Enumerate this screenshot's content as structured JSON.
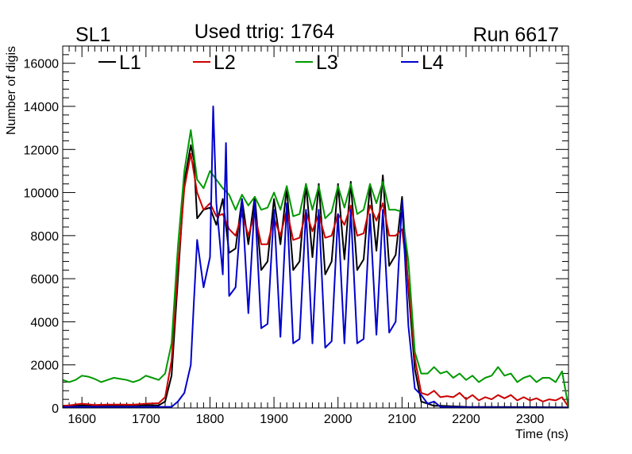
{
  "chart_data": {
    "type": "line",
    "title": "Used ttrig: 1764",
    "top_left_label": "SL1",
    "top_right_label": "Run 6617",
    "xlabel": "Time (ns)",
    "ylabel": "Number of digis",
    "xlim": [
      1570,
      2360
    ],
    "ylim": [
      0,
      16800
    ],
    "xticks": [
      1600,
      1700,
      1800,
      1900,
      2000,
      2100,
      2200,
      2300
    ],
    "yticks": [
      0,
      2000,
      4000,
      6000,
      8000,
      10000,
      12000,
      14000,
      16000
    ],
    "grid": false,
    "legend_position": "top-left, horizontal",
    "series": [
      {
        "name": "L1",
        "color": "#000000",
        "points": [
          [
            1570,
            100
          ],
          [
            1600,
            120
          ],
          [
            1650,
            120
          ],
          [
            1700,
            130
          ],
          [
            1720,
            120
          ],
          [
            1730,
            300
          ],
          [
            1740,
            1500
          ],
          [
            1750,
            6000
          ],
          [
            1760,
            10500
          ],
          [
            1770,
            12200
          ],
          [
            1775,
            11500
          ],
          [
            1780,
            8800
          ],
          [
            1790,
            9200
          ],
          [
            1800,
            9300
          ],
          [
            1810,
            8500
          ],
          [
            1820,
            9700
          ],
          [
            1830,
            7200
          ],
          [
            1840,
            7400
          ],
          [
            1850,
            9700
          ],
          [
            1860,
            7600
          ],
          [
            1870,
            9800
          ],
          [
            1880,
            6400
          ],
          [
            1890,
            6800
          ],
          [
            1900,
            9700
          ],
          [
            1910,
            7600
          ],
          [
            1920,
            10200
          ],
          [
            1930,
            6400
          ],
          [
            1940,
            6800
          ],
          [
            1950,
            10400
          ],
          [
            1960,
            7000
          ],
          [
            1970,
            10400
          ],
          [
            1980,
            6200
          ],
          [
            1990,
            6800
          ],
          [
            2000,
            10400
          ],
          [
            2010,
            6900
          ],
          [
            2020,
            10500
          ],
          [
            2030,
            6400
          ],
          [
            2040,
            6900
          ],
          [
            2050,
            10300
          ],
          [
            2060,
            7300
          ],
          [
            2070,
            10800
          ],
          [
            2080,
            6600
          ],
          [
            2090,
            7100
          ],
          [
            2100,
            9800
          ],
          [
            2110,
            5500
          ],
          [
            2120,
            1800
          ],
          [
            2130,
            300
          ],
          [
            2140,
            200
          ],
          [
            2150,
            100
          ],
          [
            2160,
            100
          ],
          [
            2200,
            50
          ],
          [
            2300,
            40
          ],
          [
            2360,
            30
          ]
        ]
      },
      {
        "name": "L2",
        "color": "#cc0000",
        "points": [
          [
            1570,
            100
          ],
          [
            1580,
            120
          ],
          [
            1600,
            200
          ],
          [
            1620,
            140
          ],
          [
            1640,
            160
          ],
          [
            1660,
            160
          ],
          [
            1680,
            150
          ],
          [
            1700,
            200
          ],
          [
            1720,
            220
          ],
          [
            1730,
            500
          ],
          [
            1740,
            2200
          ],
          [
            1750,
            6500
          ],
          [
            1760,
            10200
          ],
          [
            1770,
            11800
          ],
          [
            1780,
            10000
          ],
          [
            1790,
            9200
          ],
          [
            1800,
            9500
          ],
          [
            1810,
            8900
          ],
          [
            1820,
            9000
          ],
          [
            1830,
            8300
          ],
          [
            1840,
            8000
          ],
          [
            1850,
            9000
          ],
          [
            1860,
            8000
          ],
          [
            1870,
            9000
          ],
          [
            1880,
            7600
          ],
          [
            1890,
            7600
          ],
          [
            1900,
            8800
          ],
          [
            1910,
            8000
          ],
          [
            1920,
            9200
          ],
          [
            1930,
            7800
          ],
          [
            1940,
            7900
          ],
          [
            1950,
            9100
          ],
          [
            1960,
            8200
          ],
          [
            1970,
            9000
          ],
          [
            1980,
            7900
          ],
          [
            1990,
            8000
          ],
          [
            2000,
            9000
          ],
          [
            2010,
            8500
          ],
          [
            2020,
            9400
          ],
          [
            2030,
            8000
          ],
          [
            2040,
            8100
          ],
          [
            2050,
            9400
          ],
          [
            2060,
            8700
          ],
          [
            2070,
            9500
          ],
          [
            2080,
            8000
          ],
          [
            2090,
            8000
          ],
          [
            2100,
            8300
          ],
          [
            2110,
            5800
          ],
          [
            2120,
            2300
          ],
          [
            2130,
            700
          ],
          [
            2140,
            600
          ],
          [
            2150,
            800
          ],
          [
            2160,
            500
          ],
          [
            2170,
            550
          ],
          [
            2180,
            500
          ],
          [
            2190,
            700
          ],
          [
            2200,
            400
          ],
          [
            2210,
            600
          ],
          [
            2220,
            350
          ],
          [
            2230,
            500
          ],
          [
            2240,
            400
          ],
          [
            2250,
            600
          ],
          [
            2260,
            450
          ],
          [
            2270,
            600
          ],
          [
            2280,
            350
          ],
          [
            2290,
            500
          ],
          [
            2300,
            350
          ],
          [
            2310,
            450
          ],
          [
            2320,
            300
          ],
          [
            2330,
            400
          ],
          [
            2340,
            350
          ],
          [
            2350,
            500
          ],
          [
            2360,
            50
          ]
        ]
      },
      {
        "name": "L3",
        "color": "#009900",
        "points": [
          [
            1570,
            1300
          ],
          [
            1580,
            1200
          ],
          [
            1590,
            1300
          ],
          [
            1600,
            1500
          ],
          [
            1610,
            1450
          ],
          [
            1620,
            1350
          ],
          [
            1630,
            1200
          ],
          [
            1640,
            1300
          ],
          [
            1650,
            1400
          ],
          [
            1660,
            1350
          ],
          [
            1670,
            1300
          ],
          [
            1680,
            1200
          ],
          [
            1690,
            1300
          ],
          [
            1700,
            1500
          ],
          [
            1710,
            1400
          ],
          [
            1720,
            1300
          ],
          [
            1730,
            1600
          ],
          [
            1740,
            3000
          ],
          [
            1750,
            7500
          ],
          [
            1760,
            11000
          ],
          [
            1770,
            12900
          ],
          [
            1780,
            10600
          ],
          [
            1790,
            10200
          ],
          [
            1800,
            11000
          ],
          [
            1810,
            10600
          ],
          [
            1820,
            10200
          ],
          [
            1830,
            9900
          ],
          [
            1840,
            9200
          ],
          [
            1850,
            9900
          ],
          [
            1860,
            9400
          ],
          [
            1870,
            9800
          ],
          [
            1880,
            9200
          ],
          [
            1890,
            9300
          ],
          [
            1900,
            10000
          ],
          [
            1910,
            9200
          ],
          [
            1920,
            10300
          ],
          [
            1930,
            8900
          ],
          [
            1940,
            9000
          ],
          [
            1950,
            10400
          ],
          [
            1960,
            9200
          ],
          [
            1970,
            10300
          ],
          [
            1980,
            8800
          ],
          [
            1990,
            9100
          ],
          [
            2000,
            10300
          ],
          [
            2010,
            9300
          ],
          [
            2020,
            10400
          ],
          [
            2030,
            9000
          ],
          [
            2040,
            9200
          ],
          [
            2050,
            10400
          ],
          [
            2060,
            9500
          ],
          [
            2070,
            10500
          ],
          [
            2080,
            9200
          ],
          [
            2090,
            9200
          ],
          [
            2100,
            9100
          ],
          [
            2110,
            6800
          ],
          [
            2120,
            2600
          ],
          [
            2130,
            1600
          ],
          [
            2140,
            1600
          ],
          [
            2150,
            1900
          ],
          [
            2160,
            1600
          ],
          [
            2170,
            1700
          ],
          [
            2180,
            1400
          ],
          [
            2190,
            1600
          ],
          [
            2200,
            1300
          ],
          [
            2210,
            1500
          ],
          [
            2220,
            1200
          ],
          [
            2230,
            1400
          ],
          [
            2240,
            1500
          ],
          [
            2250,
            1900
          ],
          [
            2260,
            1500
          ],
          [
            2270,
            1600
          ],
          [
            2280,
            1200
          ],
          [
            2290,
            1400
          ],
          [
            2300,
            1500
          ],
          [
            2310,
            1200
          ],
          [
            2320,
            1400
          ],
          [
            2330,
            1400
          ],
          [
            2340,
            1200
          ],
          [
            2350,
            1700
          ],
          [
            2360,
            50
          ]
        ]
      },
      {
        "name": "L4",
        "color": "#0000cc",
        "points": [
          [
            1570,
            50
          ],
          [
            1600,
            50
          ],
          [
            1700,
            50
          ],
          [
            1740,
            50
          ],
          [
            1750,
            300
          ],
          [
            1760,
            700
          ],
          [
            1770,
            2000
          ],
          [
            1775,
            5000
          ],
          [
            1780,
            7800
          ],
          [
            1790,
            5600
          ],
          [
            1800,
            7000
          ],
          [
            1805,
            14000
          ],
          [
            1810,
            9500
          ],
          [
            1820,
            6200
          ],
          [
            1825,
            12300
          ],
          [
            1830,
            5200
          ],
          [
            1840,
            5600
          ],
          [
            1850,
            9700
          ],
          [
            1860,
            4400
          ],
          [
            1870,
            9600
          ],
          [
            1880,
            3700
          ],
          [
            1890,
            3900
          ],
          [
            1900,
            9200
          ],
          [
            1910,
            3300
          ],
          [
            1920,
            9500
          ],
          [
            1930,
            3000
          ],
          [
            1940,
            3200
          ],
          [
            1950,
            9200
          ],
          [
            1960,
            3000
          ],
          [
            1970,
            9200
          ],
          [
            1980,
            2800
          ],
          [
            1990,
            3100
          ],
          [
            2000,
            9000
          ],
          [
            2010,
            3000
          ],
          [
            2020,
            9200
          ],
          [
            2030,
            3000
          ],
          [
            2040,
            3200
          ],
          [
            2050,
            9000
          ],
          [
            2060,
            3400
          ],
          [
            2070,
            9200
          ],
          [
            2080,
            3500
          ],
          [
            2090,
            4000
          ],
          [
            2100,
            9600
          ],
          [
            2110,
            3800
          ],
          [
            2120,
            900
          ],
          [
            2130,
            600
          ],
          [
            2140,
            200
          ],
          [
            2150,
            300
          ],
          [
            2160,
            50
          ],
          [
            2200,
            30
          ],
          [
            2300,
            20
          ],
          [
            2360,
            10
          ]
        ]
      }
    ]
  }
}
